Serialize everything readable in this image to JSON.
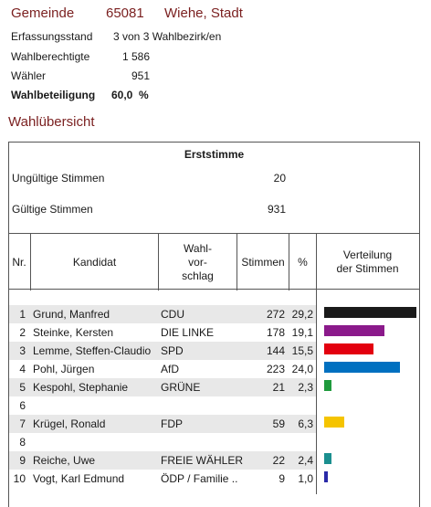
{
  "header": {
    "label": "Gemeinde",
    "code": "65081",
    "name": "Wiehe, Stadt"
  },
  "info": {
    "erfassungsstand_label": "Erfassungsstand",
    "erfassungsstand_value": "3 von 3 Wahlbezirk/en",
    "wahlberechtigte_label": "Wahlberechtigte",
    "wahlberechtigte_value": "1 586",
    "waehler_label": "Wähler",
    "waehler_value": "951",
    "wahlbeteiligung_label": "Wahlbeteiligung",
    "wahlbeteiligung_value": "60,0  %"
  },
  "section_title": "Wahlübersicht",
  "table": {
    "title": "Erststimme",
    "ungueltige_label": "Ungültige Stimmen",
    "ungueltige_value": "20",
    "gueltige_label": "Gültige Stimmen",
    "gueltige_value": "931",
    "headers": {
      "nr": "Nr.",
      "kandidat": "Kandidat",
      "wahlvorschlag": "Wahl-\nvor-\nschlag",
      "stimmen": "Stimmen",
      "pct": "%",
      "verteilung": "Verteilung\nder Stimmen"
    },
    "rows": [
      {
        "nr": "1",
        "name": "Grund, Manfred",
        "party": "CDU",
        "votes": "272",
        "pct": "29,2",
        "share": 29.2,
        "color": "#1a1a1a"
      },
      {
        "nr": "2",
        "name": "Steinke, Kersten",
        "party": "DIE LINKE",
        "votes": "178",
        "pct": "19,1",
        "share": 19.1,
        "color": "#8b1a8b"
      },
      {
        "nr": "3",
        "name": "Lemme, Steffen-Claudio",
        "party": "SPD",
        "votes": "144",
        "pct": "15,5",
        "share": 15.5,
        "color": "#e3000f"
      },
      {
        "nr": "4",
        "name": "Pohl, Jürgen",
        "party": "AfD",
        "votes": "223",
        "pct": "24,0",
        "share": 24.0,
        "color": "#0070c0"
      },
      {
        "nr": "5",
        "name": "Kespohl, Stephanie",
        "party": "GRÜNE",
        "votes": "21",
        "pct": "2,3",
        "share": 2.3,
        "color": "#1e9a3c"
      },
      {
        "nr": "6",
        "name": "",
        "party": "",
        "votes": "",
        "pct": "",
        "share": 0,
        "color": ""
      },
      {
        "nr": "7",
        "name": "Krügel, Ronald",
        "party": "FDP",
        "votes": "59",
        "pct": "6,3",
        "share": 6.3,
        "color": "#f5c400"
      },
      {
        "nr": "8",
        "name": "",
        "party": "",
        "votes": "",
        "pct": "",
        "share": 0,
        "color": ""
      },
      {
        "nr": "9",
        "name": "Reiche, Uwe",
        "party": "FREIE WÄHLER",
        "votes": "22",
        "pct": "2,4",
        "share": 2.4,
        "color": "#1b8f8f"
      },
      {
        "nr": "10",
        "name": "Vogt, Karl Edmund",
        "party": "ÖDP / Familie ..",
        "votes": "9",
        "pct": "1,0",
        "share": 1.0,
        "color": "#2a2aa8"
      }
    ]
  }
}
